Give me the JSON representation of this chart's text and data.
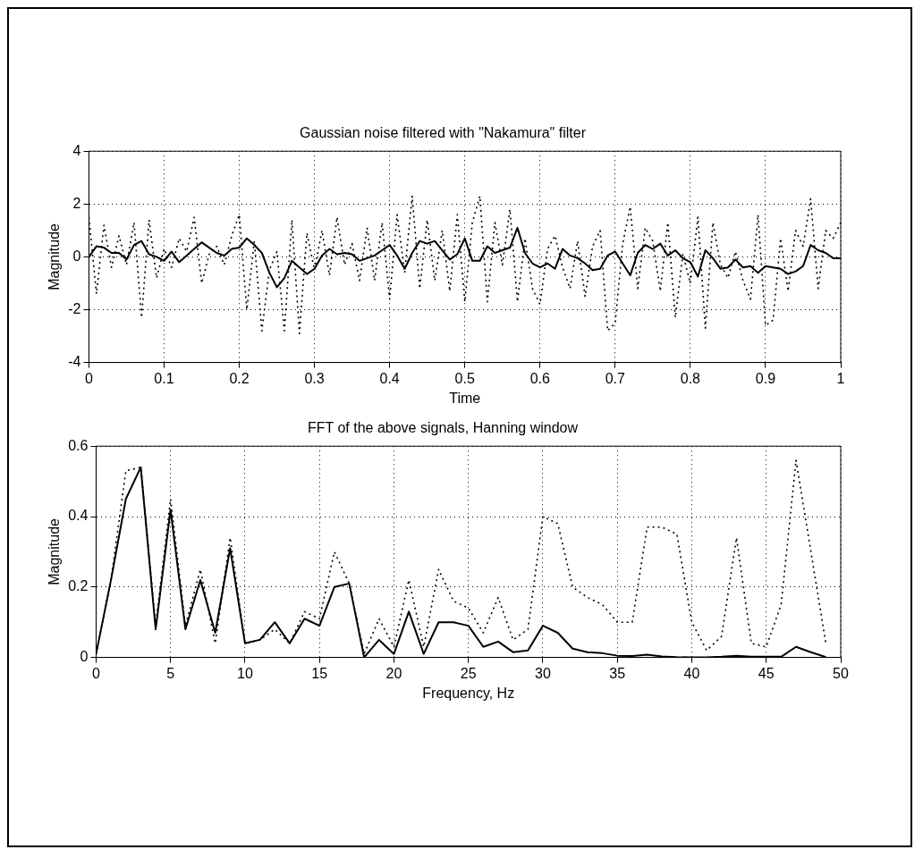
{
  "chart_data": [
    {
      "type": "line",
      "title": "Gaussian noise filtered with \"Nakamura\" filter",
      "xlabel": "Time",
      "ylabel": "Magnitude",
      "x": [
        0,
        0.01,
        0.02,
        0.03,
        0.04,
        0.05,
        0.06,
        0.07,
        0.08,
        0.09,
        0.1,
        0.11,
        0.12,
        0.13,
        0.14,
        0.15,
        0.16,
        0.17,
        0.18,
        0.19,
        0.2,
        0.21,
        0.22,
        0.23,
        0.24,
        0.25,
        0.26,
        0.27,
        0.28,
        0.29,
        0.3,
        0.31,
        0.32,
        0.33,
        0.34,
        0.35,
        0.36,
        0.37,
        0.38,
        0.39,
        0.4,
        0.41,
        0.42,
        0.43,
        0.44,
        0.45,
        0.46,
        0.47,
        0.48,
        0.49,
        0.5,
        0.51,
        0.52,
        0.53,
        0.54,
        0.55,
        0.56,
        0.57,
        0.58,
        0.59,
        0.6,
        0.61,
        0.62,
        0.63,
        0.64,
        0.65,
        0.66,
        0.67,
        0.68,
        0.69,
        0.7,
        0.71,
        0.72,
        0.73,
        0.74,
        0.75,
        0.76,
        0.77,
        0.78,
        0.79,
        0.8,
        0.81,
        0.82,
        0.83,
        0.84,
        0.85,
        0.86,
        0.87,
        0.88,
        0.89,
        0.9,
        0.91,
        0.92,
        0.93,
        0.94,
        0.95,
        0.96,
        0.97,
        0.98,
        0.99,
        1
      ],
      "series": [
        {
          "color": "#000000",
          "line_style": "dotted",
          "values": [
            1.5,
            -1.4,
            1.2,
            -0.4,
            0.8,
            -0.3,
            1.3,
            -2.3,
            1.4,
            -0.8,
            0.3,
            -0.4,
            0.7,
            0.2,
            1.5,
            -1.0,
            0.1,
            0.4,
            -0.3,
            0.8,
            1.6,
            -2.0,
            0.6,
            -2.8,
            -0.5,
            0.2,
            -2.8,
            1.4,
            -2.9,
            0.9,
            -0.5,
            1.0,
            -0.7,
            1.5,
            -0.3,
            0.5,
            -0.9,
            1.1,
            -0.9,
            1.3,
            -1.6,
            1.6,
            -0.6,
            2.3,
            -1.2,
            1.4,
            -0.9,
            1.0,
            -1.3,
            1.6,
            -1.7,
            1.3,
            2.3,
            -1.7,
            1.3,
            -0.3,
            1.8,
            -1.7,
            0.7,
            -1.2,
            -1.8,
            0.3,
            0.8,
            -0.4,
            -1.2,
            0.6,
            -1.5,
            0.4,
            1.0,
            -2.8,
            -2.5,
            0.5,
            1.9,
            -1.2,
            1.1,
            0.6,
            -1.3,
            1.3,
            -2.3,
            0.1,
            -1.0,
            1.5,
            -2.7,
            1.3,
            -0.3,
            -0.8,
            0.2,
            -0.9,
            -1.6,
            1.6,
            -2.6,
            -2.4,
            0.7,
            -1.3,
            1.0,
            0.4,
            2.2,
            -1.2,
            1.0,
            0.7,
            1.3
          ]
        },
        {
          "color": "#000000",
          "line_style": "solid",
          "values": [
            0,
            0.4,
            0.35,
            0.15,
            0.15,
            -0.1,
            0.45,
            0.6,
            0.1,
            0,
            -0.15,
            0.2,
            -0.2,
            0.05,
            0.3,
            0.55,
            0.35,
            0.15,
            0.05,
            0.3,
            0.35,
            0.7,
            0.45,
            0.15,
            -0.6,
            -1.15,
            -0.8,
            -0.15,
            -0.4,
            -0.65,
            -0.45,
            0.05,
            0.3,
            0.1,
            0.15,
            0.1,
            -0.15,
            -0.05,
            0.05,
            0.25,
            0.45,
            0.05,
            -0.45,
            0.15,
            0.6,
            0.5,
            0.6,
            0.25,
            -0.1,
            0.1,
            0.7,
            -0.15,
            -0.15,
            0.4,
            0.15,
            0.25,
            0.35,
            1.1,
            0.15,
            -0.25,
            -0.4,
            -0.25,
            -0.45,
            0.3,
            0.05,
            -0.05,
            -0.25,
            -0.5,
            -0.45,
            0.05,
            0.2,
            -0.25,
            -0.7,
            0.15,
            0.45,
            0.3,
            0.5,
            0.05,
            0.25,
            -0.05,
            -0.2,
            -0.75,
            0.25,
            -0.05,
            -0.45,
            -0.4,
            -0.1,
            -0.4,
            -0.35,
            -0.6,
            -0.35,
            -0.4,
            -0.45,
            -0.65,
            -0.55,
            -0.35,
            0.45,
            0.25,
            0.15,
            -0.05,
            -0.05
          ]
        }
      ],
      "xlim": [
        0,
        1
      ],
      "xticks": [
        0,
        0.1,
        0.2,
        0.3,
        0.4,
        0.5,
        0.6,
        0.7,
        0.8,
        0.9,
        1
      ],
      "ylim": [
        -4,
        4
      ],
      "yticks": [
        -4,
        -2,
        0,
        2,
        4
      ],
      "grid": true,
      "legend": false,
      "marker": "none"
    },
    {
      "type": "line",
      "title": "FFT of the above signals, Hanning window",
      "xlabel": "Frequency, Hz",
      "ylabel": "Magnitude",
      "x": [
        0,
        1,
        2,
        3,
        4,
        5,
        6,
        7,
        8,
        9,
        10,
        11,
        12,
        13,
        14,
        15,
        16,
        17,
        18,
        19,
        20,
        21,
        22,
        23,
        24,
        25,
        26,
        27,
        28,
        29,
        30,
        31,
        32,
        33,
        34,
        35,
        36,
        37,
        38,
        39,
        40,
        41,
        42,
        43,
        44,
        45,
        46,
        47,
        48,
        49
      ],
      "series": [
        {
          "color": "#000000",
          "line_style": "dotted",
          "values": [
            0.01,
            0.22,
            0.53,
            0.54,
            0.09,
            0.45,
            0.09,
            0.25,
            0.04,
            0.34,
            0.04,
            0.05,
            0.08,
            0.04,
            0.13,
            0.11,
            0.3,
            0.21,
            0.01,
            0.11,
            0.03,
            0.22,
            0.03,
            0.25,
            0.16,
            0.14,
            0.07,
            0.17,
            0.05,
            0.08,
            0.4,
            0.38,
            0.2,
            0.17,
            0.15,
            0.1,
            0.1,
            0.37,
            0.37,
            0.35,
            0.1,
            0.02,
            0.06,
            0.34,
            0.04,
            0.03,
            0.15,
            0.56,
            0.3,
            0.04
          ]
        },
        {
          "color": "#000000",
          "line_style": "solid",
          "values": [
            0.01,
            0.22,
            0.45,
            0.54,
            0.08,
            0.42,
            0.08,
            0.22,
            0.07,
            0.31,
            0.04,
            0.05,
            0.1,
            0.04,
            0.11,
            0.09,
            0.2,
            0.21,
            0,
            0.05,
            0.01,
            0.13,
            0.01,
            0.1,
            0.1,
            0.09,
            0.03,
            0.045,
            0.015,
            0.02,
            0.09,
            0.07,
            0.025,
            0.015,
            0.012,
            0.005,
            0.004,
            0.008,
            0.003,
            0.001,
            0,
            0,
            0.002,
            0.005,
            0.002,
            0.002,
            0.002,
            0.03,
            0.015,
            0.001
          ]
        }
      ],
      "xlim": [
        0,
        50
      ],
      "xticks": [
        0,
        5,
        10,
        15,
        20,
        25,
        30,
        35,
        40,
        45,
        50
      ],
      "ylim": [
        0,
        0.6
      ],
      "yticks": [
        0,
        0.2,
        0.4,
        0.6
      ],
      "grid": true,
      "legend": false,
      "marker": "none"
    }
  ]
}
